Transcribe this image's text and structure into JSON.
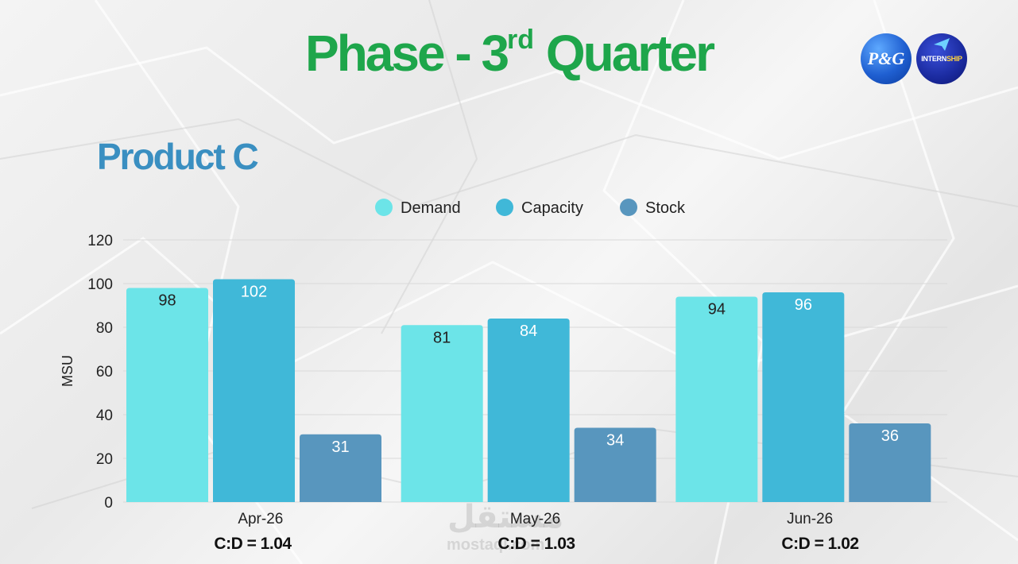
{
  "header": {
    "title_main": "Phase - 3",
    "title_sup": "rd",
    "title_tail": " Quarter",
    "subtitle": "Product C"
  },
  "logos": {
    "pg": "P&G",
    "internship_a": "INTERN",
    "internship_b": "SHIP"
  },
  "watermark": {
    "arabic": "مستقل",
    "latin": "mostaql.com"
  },
  "colors": {
    "title": "#1ea64b",
    "subtitle": "#3a8fc1",
    "demand": "#6ce4e8",
    "capacity": "#40b8d8",
    "stock": "#5896be",
    "grid": "#d9d9d9",
    "axis_text": "#222222"
  },
  "chart_data": {
    "type": "bar",
    "categories": [
      "Apr-26",
      "May-26",
      "Jun-26"
    ],
    "series": [
      {
        "name": "Demand",
        "values": [
          98,
          81,
          94
        ]
      },
      {
        "name": "Capacity",
        "values": [
          102,
          84,
          96
        ]
      },
      {
        "name": "Stock",
        "values": [
          31,
          34,
          36
        ]
      }
    ],
    "ylabel": "MSU",
    "ylim": [
      0,
      120
    ],
    "yticks": [
      0,
      20,
      40,
      60,
      80,
      100,
      120
    ],
    "grid": true,
    "legend_position": "top-center",
    "annotations": [
      "C:D = 1.04",
      "C:D = 1.03",
      "C:D = 1.02"
    ]
  }
}
